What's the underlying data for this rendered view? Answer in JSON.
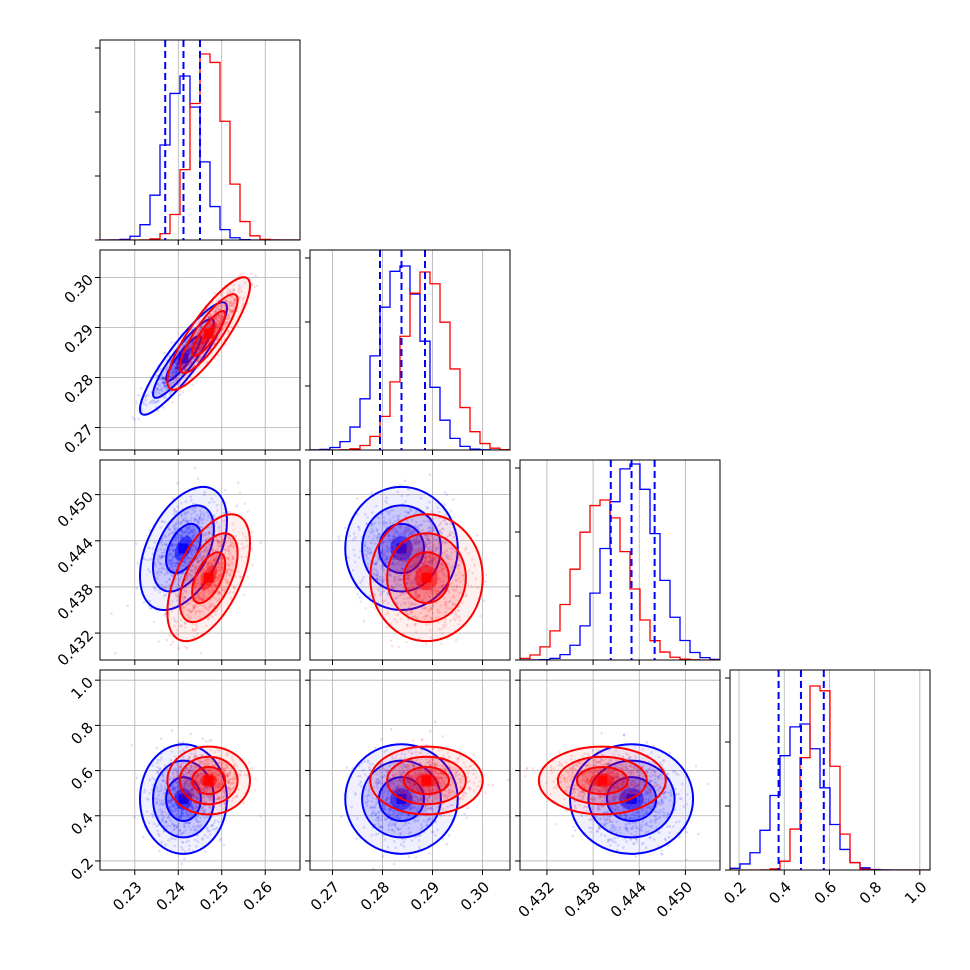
{
  "chart_data": {
    "type": "corner",
    "parameters": 4,
    "grid": true,
    "series": [
      {
        "name": "",
        "color": "#0000ff",
        "means": [
          0.2412,
          0.2838,
          0.443,
          0.474
        ],
        "sds": [
          0.004,
          0.0045,
          0.0032,
          0.097
        ],
        "corr": [
          [
            0,
            0.55
          ],
          [
            0.9,
            0
          ],
          [
            0.45,
            0
          ],
          [
            0,
            0
          ]
        ],
        "hist_peak_rel": [
          0.82,
          0.92,
          0.98,
          0.73
        ],
        "quantiles_16_50_84": [
          [
            0.237,
            0.2412,
            0.245
          ],
          [
            0.2795,
            0.2838,
            0.2885
          ],
          [
            0.4403,
            0.443,
            0.446
          ],
          [
            0.375,
            0.474,
            0.575
          ]
        ]
      },
      {
        "name": "",
        "color": "#ff0000",
        "means": [
          0.247,
          0.2888,
          0.4392,
          0.556
        ],
        "sds": [
          0.0038,
          0.0045,
          0.0033,
          0.06
        ],
        "corr": [
          [
            0,
            0.6
          ],
          [
            0.85,
            0
          ],
          [
            0.55,
            0
          ],
          [
            0,
            0
          ]
        ],
        "hist_peak_rel": [
          0.93,
          0.89,
          0.8,
          0.92
        ]
      }
    ],
    "axes": [
      {
        "range": [
          0.222,
          0.268
        ],
        "ticks": [
          0.23,
          0.24,
          0.25,
          0.26
        ],
        "tick_labels": [
          "0.23",
          "0.24",
          "0.25",
          "0.26"
        ]
      },
      {
        "range": [
          0.2655,
          0.3055
        ],
        "ticks": [
          0.27,
          0.28,
          0.29,
          0.3
        ],
        "tick_labels": [
          "0.27",
          "0.28",
          "0.29",
          "0.30"
        ]
      },
      {
        "range": [
          0.4285,
          0.4545
        ],
        "ticks": [
          0.432,
          0.438,
          0.444,
          0.45
        ],
        "tick_labels": [
          "0.432",
          "0.438",
          "0.444",
          "0.450"
        ]
      },
      {
        "range": [
          0.16,
          1.045
        ],
        "ticks": [
          0.2,
          0.4,
          0.6,
          0.8,
          1.0
        ],
        "tick_labels": [
          "0.2",
          "0.4",
          "0.6",
          "0.8",
          "1.0"
        ]
      }
    ],
    "title": "",
    "xlabel": "",
    "ylabel": ""
  }
}
